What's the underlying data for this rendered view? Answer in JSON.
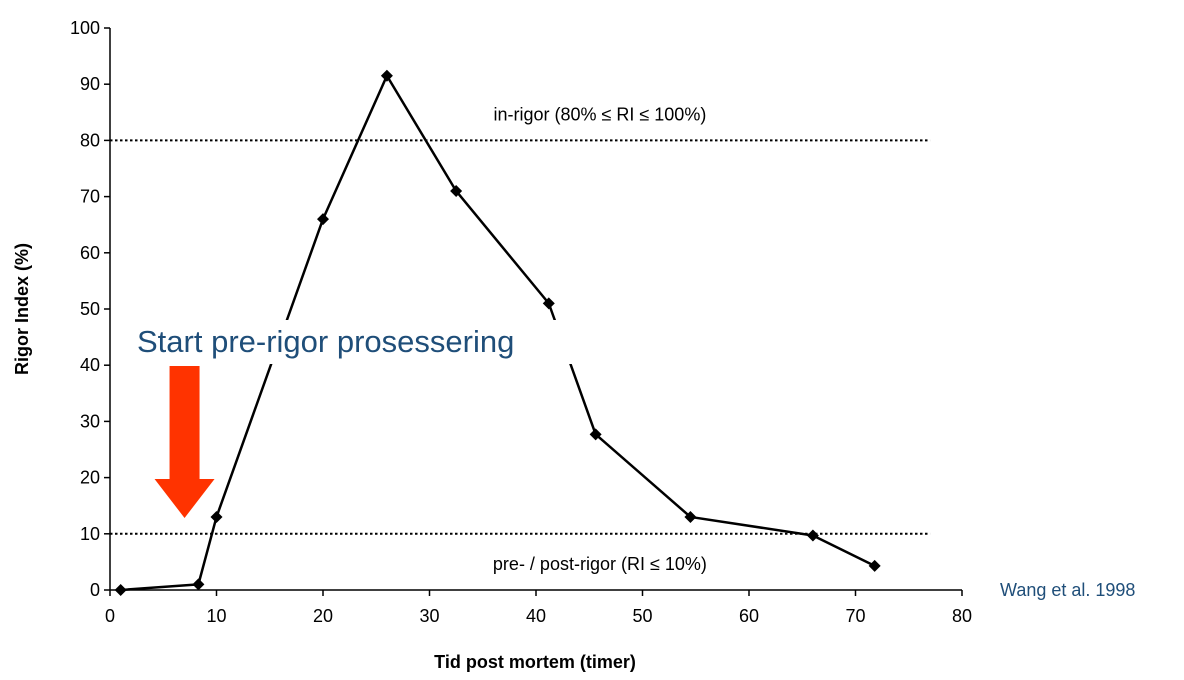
{
  "chart_data": {
    "type": "line",
    "title": "",
    "xlabel": "Tid post mortem (timer)",
    "ylabel": "Rigor Index (%)",
    "xlim": [
      0,
      80
    ],
    "ylim": [
      0,
      100
    ],
    "x_ticks": [
      0,
      10,
      20,
      30,
      40,
      50,
      60,
      70,
      80
    ],
    "y_ticks": [
      0,
      10,
      20,
      30,
      40,
      50,
      60,
      70,
      80,
      90,
      100
    ],
    "grid": false,
    "series": [
      {
        "x": [
          1,
          8.3,
          10,
          20,
          26,
          32.5,
          41.2,
          45.6,
          54.5,
          66,
          71.8
        ],
        "y": [
          0,
          1,
          13,
          66,
          91.5,
          71,
          51,
          27.7,
          13,
          9.7,
          4.3
        ],
        "marker": "diamond",
        "color": "#000000"
      }
    ],
    "reference_lines": [
      {
        "y": 80,
        "label": "in-rigor (80% ≤ RI ≤ 100%)",
        "style": "dotted"
      },
      {
        "y": 10,
        "label": "pre- / post-rigor (RI ≤ 10%)",
        "style": "dotted"
      }
    ],
    "annotations": {
      "callout_text": "Start pre-rigor prosessering",
      "arrow_color": "#ff3300",
      "arrow_at_x": 7
    },
    "source_text": "Wang et al. 1998"
  }
}
